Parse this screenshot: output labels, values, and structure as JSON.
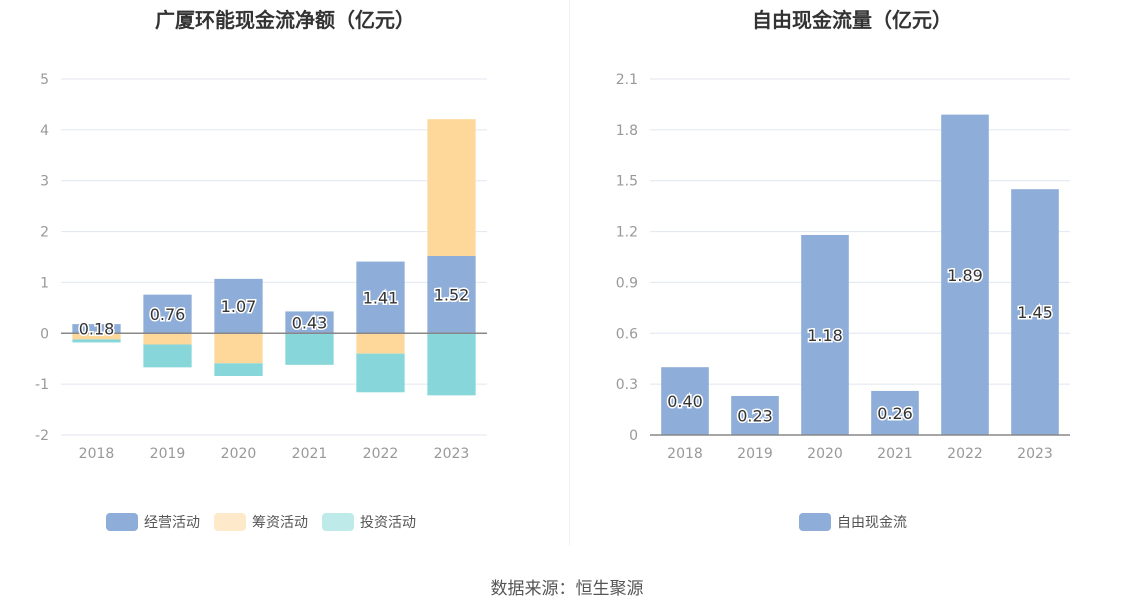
{
  "chart_data": [
    {
      "type": "bar",
      "stacked": true,
      "title": "广厦环能现金流净额（亿元）",
      "categories": [
        "2018",
        "2019",
        "2020",
        "2021",
        "2022",
        "2023"
      ],
      "ylim": [
        -2,
        5
      ],
      "yticks": [
        5,
        4,
        3,
        2,
        1,
        0,
        -1,
        -2
      ],
      "grid": true,
      "legend": "bottom",
      "series": [
        {
          "name": "经营活动",
          "color": "#8eadd9",
          "values": [
            0.18,
            0.76,
            1.07,
            0.43,
            1.41,
            1.52
          ],
          "labels": [
            "0.18",
            "0.76",
            "1.07",
            "0.43",
            "1.41",
            "1.52"
          ]
        },
        {
          "name": "筹资活动",
          "color": "#fed89b",
          "values": [
            -0.12,
            -0.22,
            -0.59,
            -0.01,
            -0.4,
            2.69
          ]
        },
        {
          "name": "投资活动",
          "color": "#87d6d9",
          "values": [
            -0.06,
            -0.45,
            -0.25,
            -0.61,
            -0.76,
            -1.22
          ]
        }
      ]
    },
    {
      "type": "bar",
      "title": "自由现金流量（亿元）",
      "categories": [
        "2018",
        "2019",
        "2020",
        "2021",
        "2022",
        "2023"
      ],
      "ylim": [
        0,
        2.1
      ],
      "yticks": [
        "2.1",
        "1.8",
        "1.5",
        "1.2",
        "0.9",
        "0.6",
        "0.3",
        "0"
      ],
      "grid": true,
      "legend": "bottom",
      "series": [
        {
          "name": "自由现金流",
          "color": "#8eadd9",
          "values": [
            0.4,
            0.23,
            1.18,
            0.26,
            1.89,
            1.45
          ],
          "labels": [
            "0.40",
            "0.23",
            "1.18",
            "0.26",
            "1.89",
            "1.45"
          ]
        }
      ]
    }
  ],
  "source": "数据来源：恒生聚源"
}
